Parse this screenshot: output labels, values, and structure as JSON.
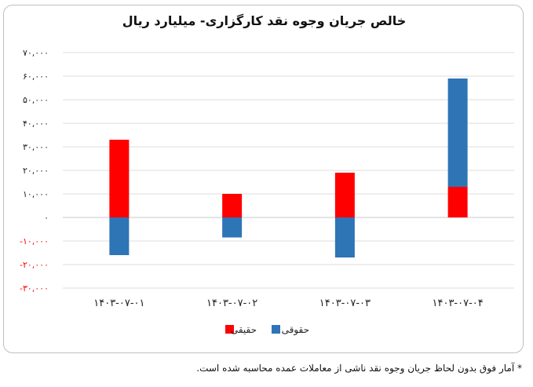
{
  "chart_data": {
    "type": "bar",
    "stacked": true,
    "title": "خالص جریان وجوه نقد کارگزاری- میلیارد ریال",
    "categories": [
      "۱۴۰۳-۰۷-۰۱",
      "۱۴۰۳-۰۷-۰۲",
      "۱۴۰۳-۰۷-۰۳",
      "۱۴۰۳-۰۷-۰۴"
    ],
    "series": [
      {
        "name": "حقیقی",
        "color": "#ff0000",
        "values": [
          33000,
          10000,
          19000,
          13000
        ]
      },
      {
        "name": "حقوقی",
        "color": "#2e75b6",
        "values": [
          -16000,
          -8500,
          -17000,
          46000
        ]
      }
    ],
    "ylim": [
      -30000,
      70000
    ],
    "yticks": [
      70000,
      60000,
      50000,
      40000,
      30000,
      20000,
      10000,
      0,
      -10000,
      -20000,
      -30000
    ],
    "ytick_labels": [
      "۷۰,۰۰۰",
      "۶۰,۰۰۰",
      "۵۰,۰۰۰",
      "۴۰,۰۰۰",
      "۳۰,۰۰۰",
      "۲۰,۰۰۰",
      "۱۰,۰۰۰",
      "۰",
      "-۱۰,۰۰۰",
      "-۲۰,۰۰۰",
      "-۳۰,۰۰۰"
    ],
    "negative_tick_color": "#ff0000",
    "grid": true,
    "legend_position": "bottom"
  },
  "footnote": "* آمار فوق بدون لحاظ جریان وجوه نقد ناشی از معاملات عمده محاسبه شده است."
}
